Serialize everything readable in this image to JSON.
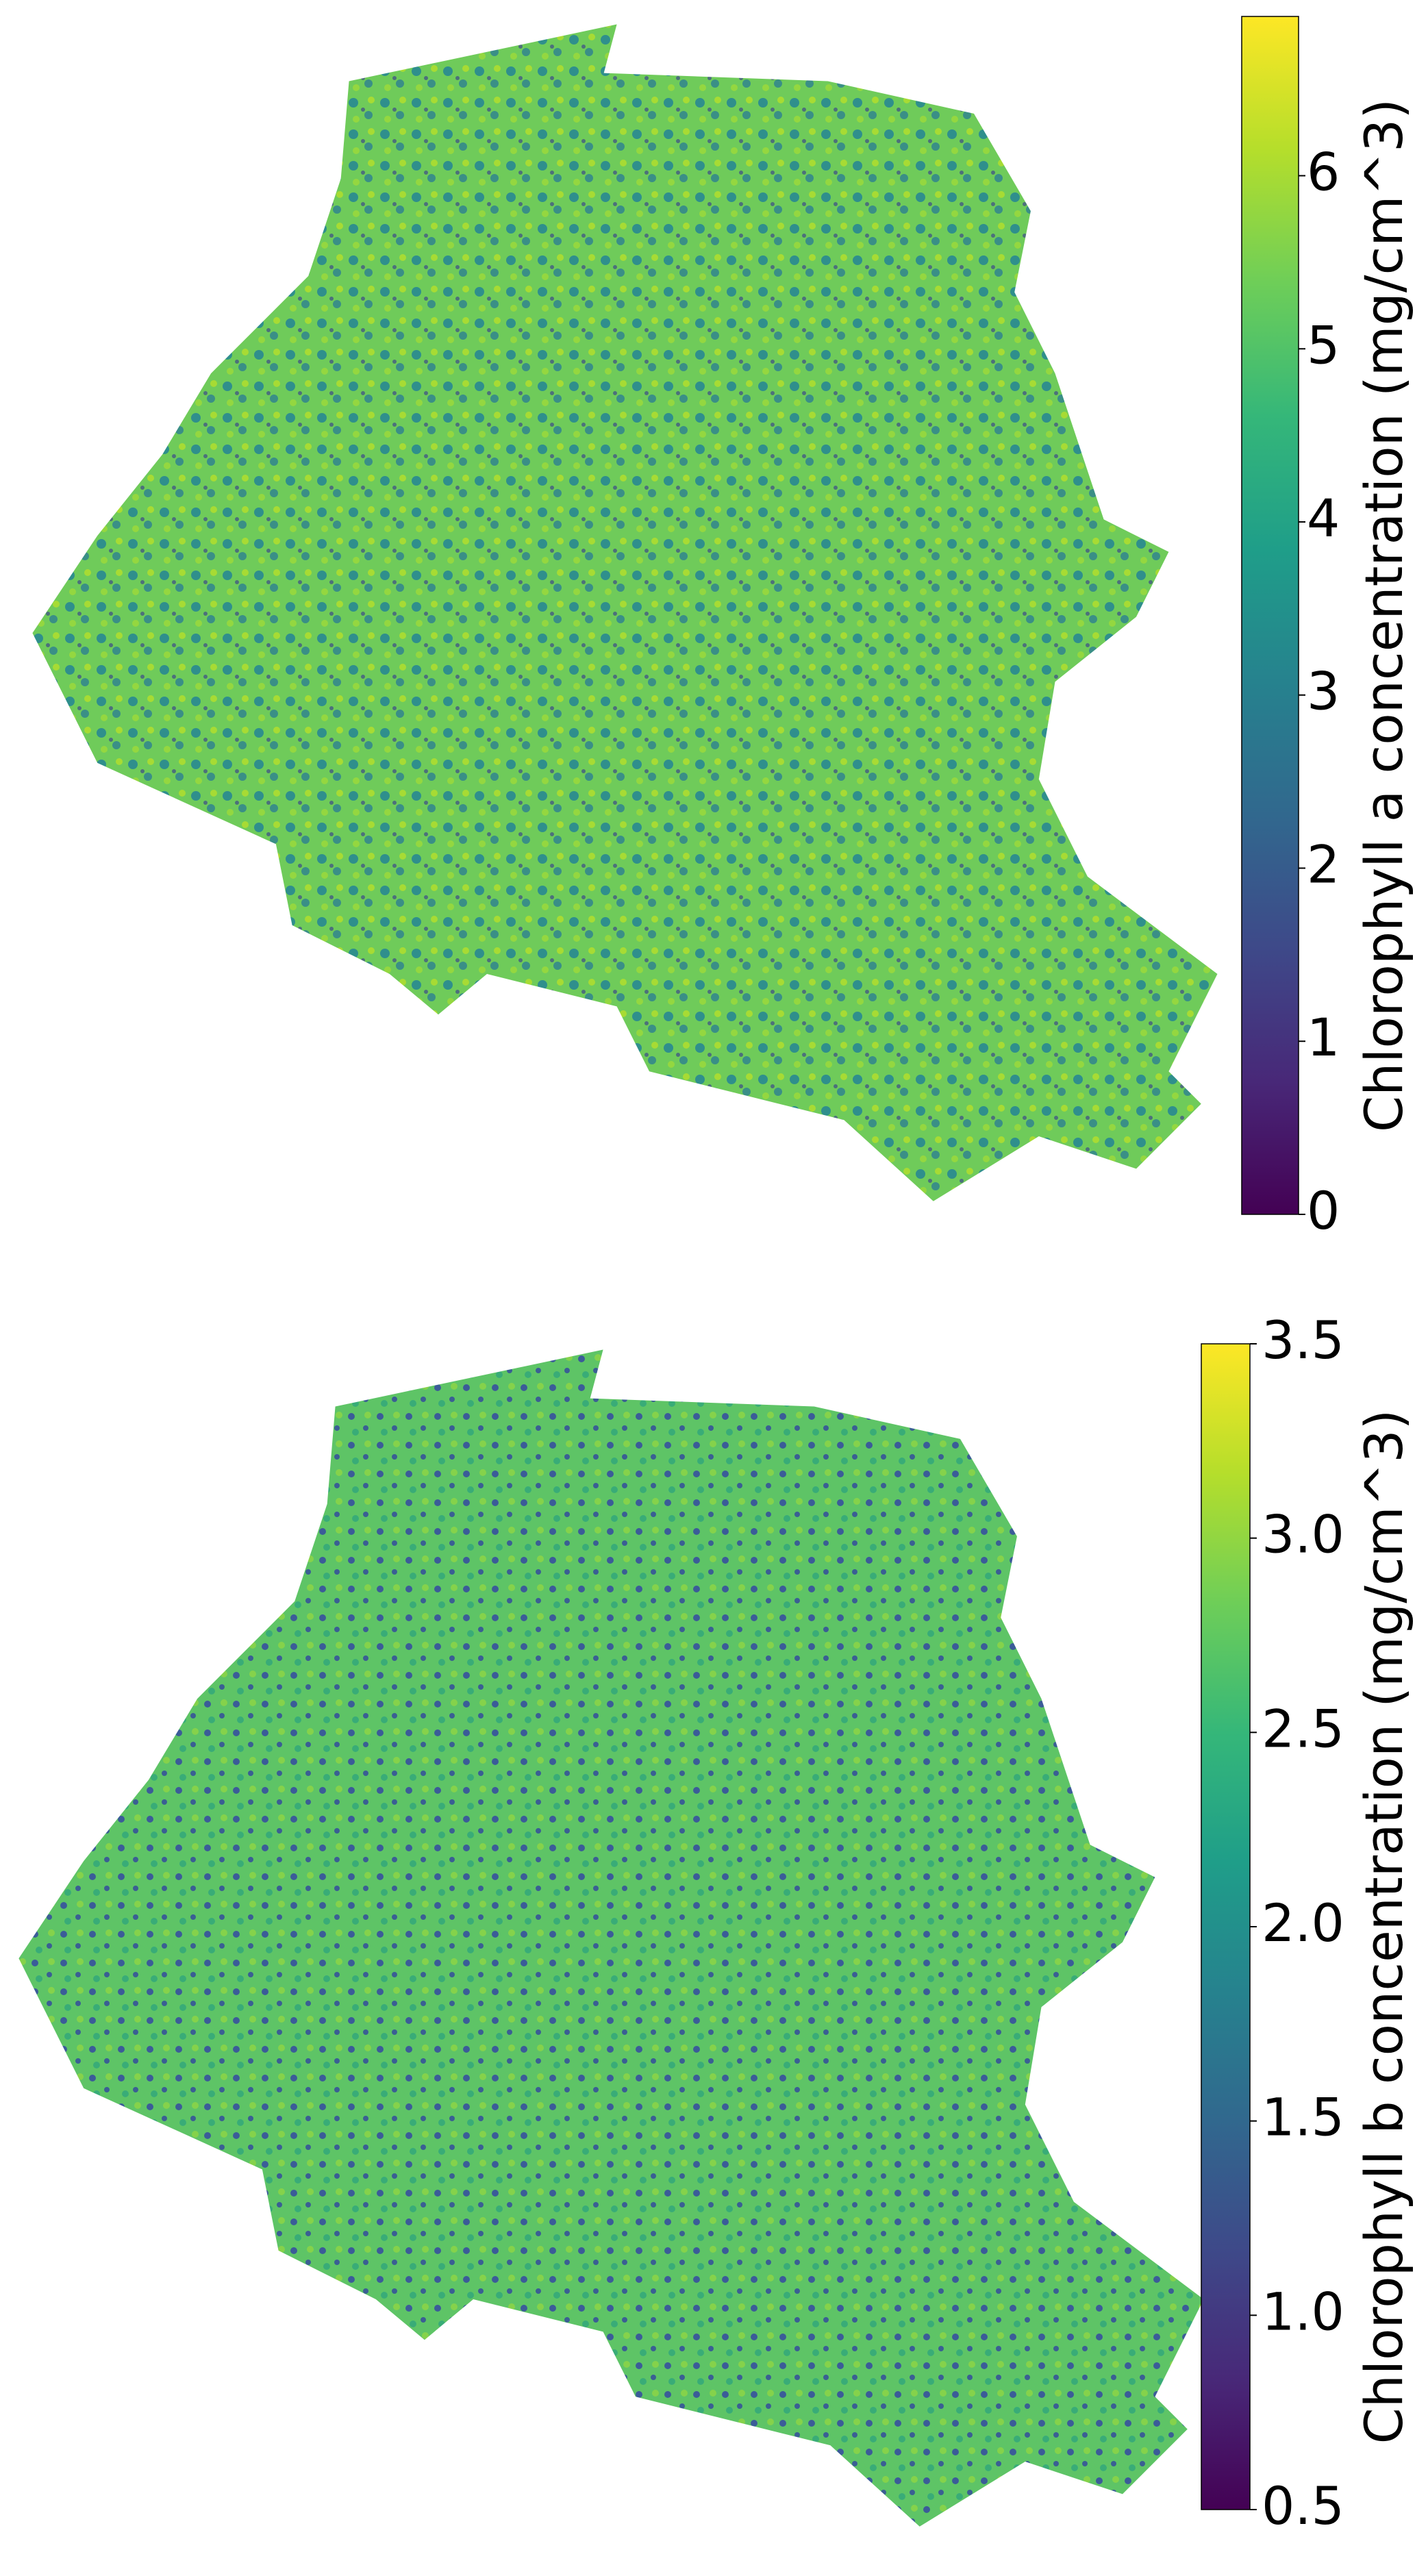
{
  "chart_data": [
    {
      "type": "heatmap",
      "colormap": "viridis",
      "colorbar_label": "Chlorophyll a concentration (mg/cm^3)",
      "ylim": [
        0,
        6.92
      ],
      "yticks": [
        0,
        1,
        2,
        3,
        4,
        5,
        6
      ]
    },
    {
      "type": "heatmap",
      "colormap": "viridis",
      "colorbar_label": "Chlorophyll b concentration (mg/cm^3)",
      "ylim": [
        0.5,
        3.5
      ],
      "yticks": [
        0.5,
        {
          "value": 1,
          "label": "1.0"
        },
        1.5,
        {
          "value": 2,
          "label": "2.0"
        },
        2.5,
        {
          "value": 3,
          "label": "3.0"
        },
        3.5
      ]
    }
  ]
}
